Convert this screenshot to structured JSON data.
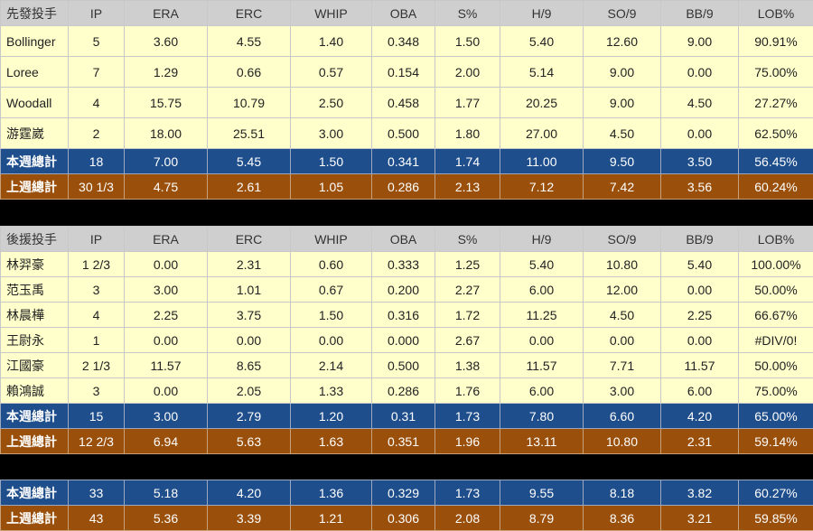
{
  "columns": [
    "IP",
    "ERA",
    "ERC",
    "WHIP",
    "OBA",
    "S%",
    "H/9",
    "SO/9",
    "BB/9",
    "LOB%"
  ],
  "starters": {
    "label": "先發投手",
    "rows": [
      {
        "name": "Bollinger",
        "v": [
          "5",
          "3.60",
          "4.55",
          "1.40",
          "0.348",
          "1.50",
          "5.40",
          "12.60",
          "9.00",
          "90.91%"
        ]
      },
      {
        "name": "Loree",
        "v": [
          "7",
          "1.29",
          "0.66",
          "0.57",
          "0.154",
          "2.00",
          "5.14",
          "9.00",
          "0.00",
          "75.00%"
        ]
      },
      {
        "name": "Woodall",
        "v": [
          "4",
          "15.75",
          "10.79",
          "2.50",
          "0.458",
          "1.77",
          "20.25",
          "9.00",
          "4.50",
          "27.27%"
        ]
      },
      {
        "name": "游霆崴",
        "v": [
          "2",
          "18.00",
          "25.51",
          "3.00",
          "0.500",
          "1.80",
          "27.00",
          "4.50",
          "0.00",
          "62.50%"
        ]
      }
    ],
    "this_week": {
      "name": "本週總計",
      "v": [
        "18",
        "7.00",
        "5.45",
        "1.50",
        "0.341",
        "1.74",
        "11.00",
        "9.50",
        "3.50",
        "56.45%"
      ]
    },
    "last_week": {
      "name": "上週總計",
      "v": [
        "30 1/3",
        "4.75",
        "2.61",
        "1.05",
        "0.286",
        "2.13",
        "7.12",
        "7.42",
        "3.56",
        "60.24%"
      ]
    }
  },
  "relievers": {
    "label": "後援投手",
    "rows": [
      {
        "name": "林羿豪",
        "v": [
          "1 2/3",
          "0.00",
          "2.31",
          "0.60",
          "0.333",
          "1.25",
          "5.40",
          "10.80",
          "5.40",
          "100.00%"
        ]
      },
      {
        "name": "范玉禹",
        "v": [
          "3",
          "3.00",
          "1.01",
          "0.67",
          "0.200",
          "2.27",
          "6.00",
          "12.00",
          "0.00",
          "50.00%"
        ]
      },
      {
        "name": "林晨樺",
        "v": [
          "4",
          "2.25",
          "3.75",
          "1.50",
          "0.316",
          "1.72",
          "11.25",
          "4.50",
          "2.25",
          "66.67%"
        ]
      },
      {
        "name": "王尉永",
        "v": [
          "1",
          "0.00",
          "0.00",
          "0.00",
          "0.000",
          "2.67",
          "0.00",
          "0.00",
          "0.00",
          "#DIV/0!"
        ]
      },
      {
        "name": "江國豪",
        "v": [
          "2 1/3",
          "11.57",
          "8.65",
          "2.14",
          "0.500",
          "1.38",
          "11.57",
          "7.71",
          "11.57",
          "50.00%"
        ]
      },
      {
        "name": "賴鴻誠",
        "v": [
          "3",
          "0.00",
          "2.05",
          "1.33",
          "0.286",
          "1.76",
          "6.00",
          "3.00",
          "6.00",
          "75.00%"
        ]
      }
    ],
    "this_week": {
      "name": "本週總計",
      "v": [
        "15",
        "3.00",
        "2.79",
        "1.20",
        "0.31",
        "1.73",
        "7.80",
        "6.60",
        "4.20",
        "65.00%"
      ]
    },
    "last_week": {
      "name": "上週總計",
      "v": [
        "12 2/3",
        "6.94",
        "5.63",
        "1.63",
        "0.351",
        "1.96",
        "13.11",
        "10.80",
        "2.31",
        "59.14%"
      ]
    }
  },
  "totals": {
    "this_week": {
      "name": "本週總計",
      "v": [
        "33",
        "5.18",
        "4.20",
        "1.36",
        "0.329",
        "1.73",
        "9.55",
        "8.18",
        "3.82",
        "60.27%"
      ]
    },
    "last_week": {
      "name": "上週總計",
      "v": [
        "43",
        "5.36",
        "3.39",
        "1.21",
        "0.306",
        "2.08",
        "8.79",
        "8.36",
        "3.21",
        "59.85%"
      ]
    }
  },
  "colors": {
    "header": "#cfcfcf",
    "data": "#ffffcc",
    "this_week": "#1f4e8c",
    "last_week": "#9a4f0a"
  }
}
